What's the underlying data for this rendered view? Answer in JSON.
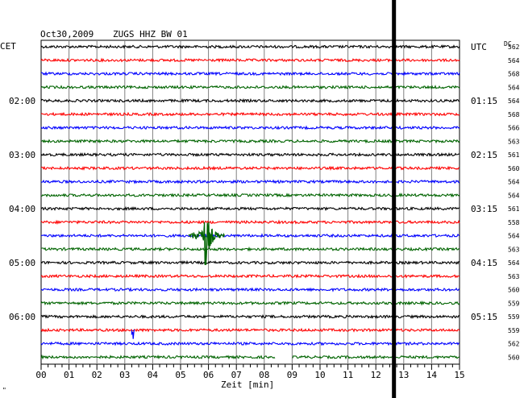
{
  "header": {
    "date": "Oct30,2009",
    "station": "ZUGS HHZ BW 01",
    "left_zone": "CET",
    "right_zone": "UTC",
    "dc_label": "DC"
  },
  "footer": {
    "xlabel": "Zeit [min]",
    "corner_mark": "\""
  },
  "chart_data": {
    "type": "line",
    "xlabel": "Zeit [min]",
    "xlim": [
      0,
      15
    ],
    "x_ticks": [
      "00",
      "01",
      "02",
      "03",
      "04",
      "05",
      "06",
      "07",
      "08",
      "09",
      "10",
      "11",
      "12",
      "13",
      "14",
      "15"
    ],
    "rows": 24,
    "row_colors": [
      "#000000",
      "#ff0000",
      "#0000ff",
      "#006400"
    ],
    "left_time_labels": [
      {
        "row": 4,
        "label": "02:00"
      },
      {
        "row": 8,
        "label": "03:00"
      },
      {
        "row": 12,
        "label": "04:00"
      },
      {
        "row": 16,
        "label": "05:00"
      },
      {
        "row": 20,
        "label": "06:00"
      }
    ],
    "right_time_labels": [
      {
        "row": 0,
        "label": "UTC"
      },
      {
        "row": 4,
        "label": "01:15"
      },
      {
        "row": 8,
        "label": "02:15"
      },
      {
        "row": 12,
        "label": "03:15"
      },
      {
        "row": 16,
        "label": "04:15"
      },
      {
        "row": 20,
        "label": "05:15"
      }
    ],
    "dc_values": [
      "562",
      "564",
      "568",
      "564",
      "564",
      "568",
      "566",
      "563",
      "561",
      "560",
      "564",
      "564",
      "561",
      "558",
      "564",
      "563",
      "564",
      "563",
      "560",
      "559",
      "559",
      "559",
      "562",
      "560"
    ],
    "events": [
      {
        "row": 14,
        "start_min": 5.3,
        "end_min": 6.6,
        "peak_min": 5.85,
        "amplitude": "large",
        "color": "#006400"
      },
      {
        "row": 21,
        "start_min": 3.25,
        "end_min": 3.35,
        "peak_min": 3.3,
        "amplitude": "small",
        "color": "#0000ff"
      }
    ],
    "gaps": [
      {
        "row": 23,
        "start_min": 8.4,
        "end_min": 9.0
      }
    ],
    "marker_vertical_line_min": 12.65,
    "grid": true
  }
}
